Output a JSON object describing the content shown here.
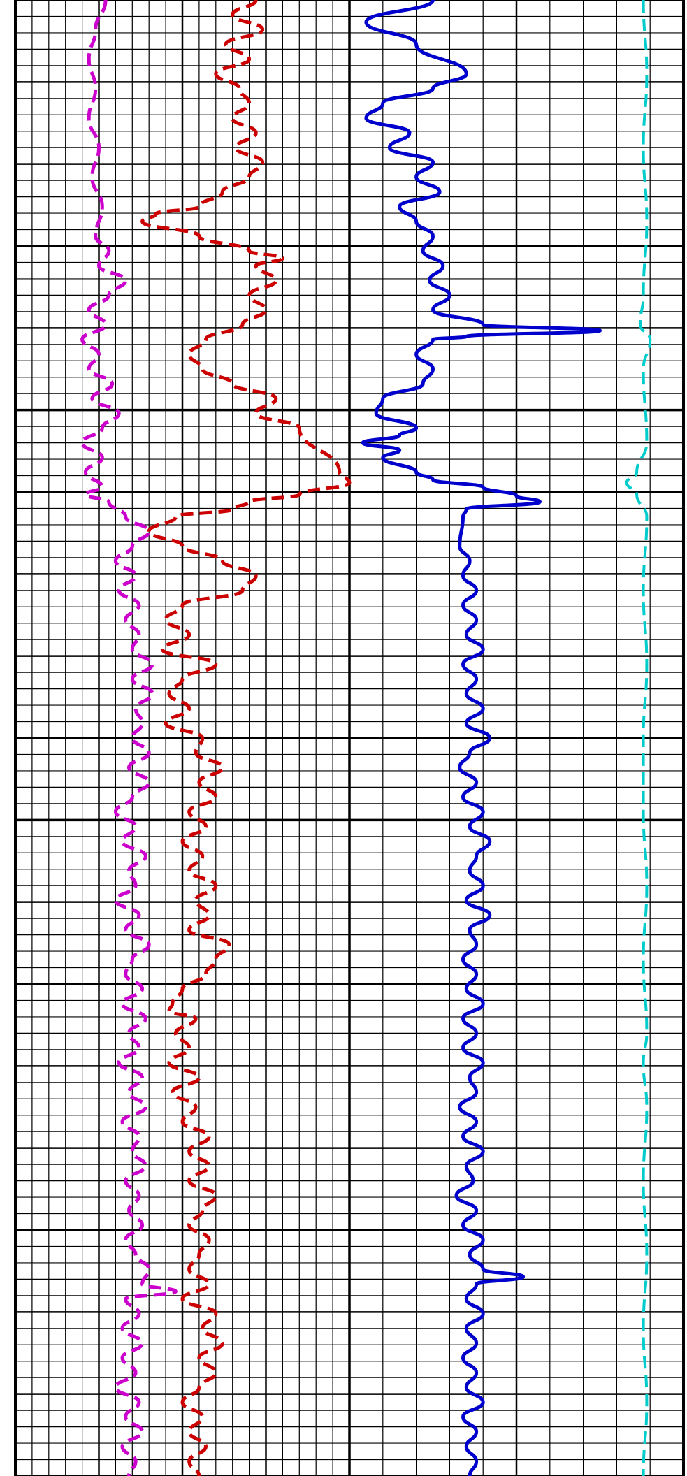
{
  "chart_data": {
    "type": "line",
    "orientation": "vertical-depth",
    "title": "",
    "xlabel": "",
    "ylabel": "",
    "grid": true,
    "legend": "none",
    "tracks": [
      {
        "name": "track-1",
        "x_range": [
          0,
          100
        ],
        "major_divisions": 4,
        "minor_per_major": 5
      },
      {
        "name": "track-2",
        "x_range": [
          0,
          100
        ],
        "major_divisions": 2,
        "minor_per_major": 5
      }
    ],
    "depth_range": [
      0,
      100
    ],
    "colors": {
      "grid_minor": "#000000",
      "grid_major": "#000000",
      "background": "#ffffff"
    },
    "series": [
      {
        "track": 0,
        "color": "#cc00cc",
        "style": "dash",
        "width": 5,
        "points": [
          [
            27,
            0
          ],
          [
            24,
            2
          ],
          [
            22,
            4
          ],
          [
            24,
            6
          ],
          [
            22,
            8
          ],
          [
            25,
            10
          ],
          [
            23,
            12
          ],
          [
            26,
            14
          ],
          [
            24,
            16
          ],
          [
            28,
            17
          ],
          [
            25,
            18
          ],
          [
            33,
            19
          ],
          [
            28,
            20
          ],
          [
            22,
            21
          ],
          [
            27,
            22
          ],
          [
            20,
            23
          ],
          [
            25,
            24
          ],
          [
            22,
            25
          ],
          [
            29,
            26
          ],
          [
            23,
            27
          ],
          [
            31,
            28
          ],
          [
            26,
            29
          ],
          [
            20,
            30
          ],
          [
            26,
            31
          ],
          [
            21,
            32
          ],
          [
            26,
            33
          ],
          [
            21,
            33.5
          ],
          [
            28,
            34
          ],
          [
            33,
            35
          ],
          [
            40,
            36
          ],
          [
            35,
            37
          ],
          [
            30,
            38
          ],
          [
            36,
            39
          ],
          [
            31,
            40
          ],
          [
            37,
            41
          ],
          [
            33,
            42
          ],
          [
            37,
            43
          ],
          [
            35,
            44
          ],
          [
            41,
            45
          ],
          [
            35,
            46
          ],
          [
            41,
            47
          ],
          [
            36,
            48
          ],
          [
            38,
            49
          ],
          [
            35,
            50
          ],
          [
            40,
            51
          ],
          [
            34,
            52
          ],
          [
            40,
            53
          ],
          [
            35,
            54
          ],
          [
            30,
            55
          ],
          [
            36,
            56
          ],
          [
            32,
            57
          ],
          [
            39,
            58
          ],
          [
            34,
            59
          ],
          [
            36,
            60
          ],
          [
            30,
            61
          ],
          [
            37,
            62
          ],
          [
            33,
            63
          ],
          [
            40,
            64
          ],
          [
            35,
            65
          ],
          [
            33,
            66
          ],
          [
            38,
            67
          ],
          [
            32,
            68
          ],
          [
            39,
            69
          ],
          [
            34,
            70
          ],
          [
            37,
            71
          ],
          [
            31,
            72
          ],
          [
            38,
            73
          ],
          [
            34,
            74
          ],
          [
            39,
            75
          ],
          [
            32,
            76
          ],
          [
            37,
            77
          ],
          [
            35,
            78
          ],
          [
            39,
            79
          ],
          [
            33,
            80
          ],
          [
            37,
            81
          ],
          [
            34,
            82
          ],
          [
            38,
            83
          ],
          [
            33,
            84
          ],
          [
            36,
            85
          ],
          [
            40,
            86
          ],
          [
            38,
            87
          ],
          [
            48,
            87.5
          ],
          [
            33,
            88
          ],
          [
            37,
            89
          ],
          [
            32,
            90
          ],
          [
            38,
            91
          ],
          [
            32,
            92
          ],
          [
            36,
            93
          ],
          [
            30,
            94
          ],
          [
            37,
            95
          ],
          [
            33,
            96
          ],
          [
            38,
            97
          ],
          [
            32,
            98
          ],
          [
            36,
            99
          ],
          [
            34,
            100
          ]
        ]
      },
      {
        "track": 0,
        "color": "#cc0000",
        "style": "dash",
        "width": 5,
        "points": [
          [
            72,
            0
          ],
          [
            65,
            1
          ],
          [
            74,
            2
          ],
          [
            63,
            3
          ],
          [
            70,
            4
          ],
          [
            60,
            5
          ],
          [
            67,
            6
          ],
          [
            70,
            7
          ],
          [
            65,
            8
          ],
          [
            72,
            9
          ],
          [
            66,
            10
          ],
          [
            74,
            11
          ],
          [
            70,
            12
          ],
          [
            62,
            13
          ],
          [
            55,
            14
          ],
          [
            42,
            14.5
          ],
          [
            38,
            15
          ],
          [
            55,
            16
          ],
          [
            70,
            17
          ],
          [
            80,
            17.5
          ],
          [
            72,
            18
          ],
          [
            78,
            19
          ],
          [
            70,
            20
          ],
          [
            75,
            21
          ],
          [
            68,
            22
          ],
          [
            57,
            23
          ],
          [
            52,
            24
          ],
          [
            56,
            25
          ],
          [
            65,
            26
          ],
          [
            78,
            27
          ],
          [
            72,
            28
          ],
          [
            85,
            29
          ],
          [
            97,
            32
          ],
          [
            100,
            32.7
          ],
          [
            85,
            33.5
          ],
          [
            70,
            34
          ],
          [
            65,
            34.5
          ],
          [
            48,
            35
          ],
          [
            40,
            36
          ],
          [
            50,
            37
          ],
          [
            62,
            38
          ],
          [
            72,
            39
          ],
          [
            68,
            40
          ],
          [
            50,
            41
          ],
          [
            45,
            42
          ],
          [
            52,
            43
          ],
          [
            44,
            44
          ],
          [
            60,
            45
          ],
          [
            50,
            46
          ],
          [
            46,
            47
          ],
          [
            52,
            48
          ],
          [
            45,
            49
          ],
          [
            56,
            50
          ],
          [
            54,
            51
          ],
          [
            62,
            52
          ],
          [
            55,
            53
          ],
          [
            60,
            54
          ],
          [
            52,
            55
          ],
          [
            57,
            56
          ],
          [
            50,
            57
          ],
          [
            56,
            58
          ],
          [
            52,
            59
          ],
          [
            60,
            60
          ],
          [
            54,
            61
          ],
          [
            58,
            62
          ],
          [
            52,
            63
          ],
          [
            64,
            64
          ],
          [
            60,
            65
          ],
          [
            57,
            66
          ],
          [
            50,
            67
          ],
          [
            47,
            68
          ],
          [
            46,
            68.5
          ],
          [
            54,
            69
          ],
          [
            48,
            70
          ],
          [
            52,
            71
          ],
          [
            46,
            72
          ],
          [
            55,
            73
          ],
          [
            47,
            74
          ],
          [
            54,
            75
          ],
          [
            50,
            76
          ],
          [
            58,
            77
          ],
          [
            52,
            78
          ],
          [
            58,
            79
          ],
          [
            52,
            80
          ],
          [
            60,
            81
          ],
          [
            56,
            82
          ],
          [
            52,
            83
          ],
          [
            58,
            84
          ],
          [
            55,
            85
          ],
          [
            52,
            86
          ],
          [
            58,
            87
          ],
          [
            50,
            88
          ],
          [
            60,
            89
          ],
          [
            56,
            90
          ],
          [
            62,
            91
          ],
          [
            55,
            92
          ],
          [
            60,
            93
          ],
          [
            55,
            94
          ],
          [
            50,
            95
          ],
          [
            56,
            96
          ],
          [
            52,
            97
          ],
          [
            57,
            98
          ],
          [
            52,
            99
          ],
          [
            55,
            100
          ]
        ]
      },
      {
        "track": 1,
        "color": "#0000cc",
        "style": "solid",
        "width": 5,
        "points": [
          [
            25,
            0
          ],
          [
            5,
            1.5
          ],
          [
            20,
            3
          ],
          [
            35,
            5
          ],
          [
            25,
            6
          ],
          [
            10,
            7
          ],
          [
            5,
            8
          ],
          [
            18,
            9
          ],
          [
            12,
            10
          ],
          [
            25,
            11
          ],
          [
            20,
            12
          ],
          [
            27,
            13
          ],
          [
            15,
            14
          ],
          [
            20,
            15
          ],
          [
            25,
            16
          ],
          [
            22,
            17
          ],
          [
            28,
            18
          ],
          [
            24,
            19
          ],
          [
            30,
            20
          ],
          [
            25,
            21
          ],
          [
            40,
            22
          ],
          [
            75,
            22.4
          ],
          [
            35,
            22.8
          ],
          [
            25,
            23
          ],
          [
            20,
            24
          ],
          [
            25,
            25
          ],
          [
            22,
            26
          ],
          [
            10,
            27
          ],
          [
            8,
            28
          ],
          [
            20,
            29
          ],
          [
            15,
            29.5
          ],
          [
            4,
            30
          ],
          [
            15,
            30.5
          ],
          [
            10,
            31
          ],
          [
            20,
            32
          ],
          [
            25,
            32.5
          ],
          [
            40,
            33
          ],
          [
            50,
            33.6
          ],
          [
            57,
            34
          ],
          [
            35,
            34.5
          ],
          [
            34,
            35
          ],
          [
            33,
            37
          ],
          [
            36,
            38
          ],
          [
            34,
            39
          ],
          [
            38,
            40
          ],
          [
            34,
            41
          ],
          [
            38,
            42
          ],
          [
            35,
            43
          ],
          [
            40,
            44
          ],
          [
            34,
            45
          ],
          [
            38,
            46
          ],
          [
            35,
            47
          ],
          [
            40,
            48
          ],
          [
            35,
            49
          ],
          [
            42,
            50
          ],
          [
            36,
            51
          ],
          [
            33,
            52
          ],
          [
            38,
            53
          ],
          [
            34,
            54
          ],
          [
            40,
            55
          ],
          [
            36,
            56
          ],
          [
            42,
            57
          ],
          [
            38,
            58
          ],
          [
            36,
            59
          ],
          [
            40,
            60
          ],
          [
            35,
            61
          ],
          [
            42,
            62
          ],
          [
            36,
            63
          ],
          [
            38,
            64
          ],
          [
            34,
            65
          ],
          [
            38,
            66
          ],
          [
            35,
            67
          ],
          [
            40,
            68
          ],
          [
            34,
            69
          ],
          [
            38,
            70
          ],
          [
            34,
            71
          ],
          [
            40,
            72
          ],
          [
            36,
            73
          ],
          [
            38,
            74
          ],
          [
            33,
            75
          ],
          [
            38,
            76
          ],
          [
            34,
            77
          ],
          [
            40,
            78
          ],
          [
            35,
            79
          ],
          [
            37,
            80
          ],
          [
            32,
            81
          ],
          [
            38,
            82
          ],
          [
            34,
            83
          ],
          [
            40,
            84
          ],
          [
            36,
            85
          ],
          [
            40,
            86
          ],
          [
            52,
            86.5
          ],
          [
            38,
            87
          ],
          [
            35,
            88
          ],
          [
            40,
            89
          ],
          [
            35,
            90
          ],
          [
            38,
            91
          ],
          [
            34,
            92
          ],
          [
            38,
            93
          ],
          [
            35,
            94
          ],
          [
            40,
            95
          ],
          [
            34,
            96
          ],
          [
            38,
            97
          ],
          [
            35,
            98
          ],
          [
            38,
            99
          ],
          [
            36,
            100
          ]
        ]
      },
      {
        "track": 1,
        "color": "#00cccc",
        "style": "dash",
        "width": 4,
        "points": [
          [
            88,
            0
          ],
          [
            89,
            5
          ],
          [
            88,
            10
          ],
          [
            89,
            15
          ],
          [
            88,
            20
          ],
          [
            87,
            22
          ],
          [
            90,
            23
          ],
          [
            88,
            25
          ],
          [
            89,
            30
          ],
          [
            86,
            32
          ],
          [
            83,
            32.7
          ],
          [
            86,
            33.5
          ],
          [
            89,
            35
          ],
          [
            88,
            40
          ],
          [
            89,
            45
          ],
          [
            88,
            50
          ],
          [
            88,
            55
          ],
          [
            89,
            60
          ],
          [
            88,
            65
          ],
          [
            89,
            70
          ],
          [
            88,
            72
          ],
          [
            89,
            75
          ],
          [
            88,
            80
          ],
          [
            89,
            85
          ],
          [
            88,
            90
          ],
          [
            89,
            95
          ],
          [
            88,
            100
          ]
        ]
      }
    ]
  }
}
